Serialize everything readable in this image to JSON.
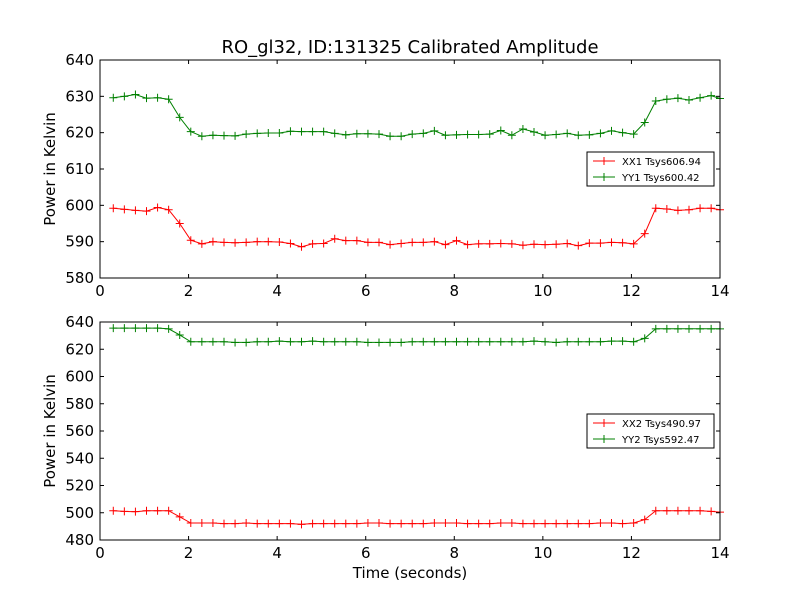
{
  "title": "RO_gl32, ID:131325 Calibrated Amplitude",
  "colors": {
    "xx": "#ff0000",
    "yy": "#008000",
    "axis": "#000000",
    "background": "#ffffff"
  },
  "chart_data": [
    {
      "type": "line",
      "title": "RO_gl32, ID:131325 Calibrated Amplitude",
      "xlabel": "",
      "ylabel": "Power in Kelvin",
      "xlim": [
        0,
        14
      ],
      "ylim": [
        580,
        640
      ],
      "xticks": [
        0,
        2,
        4,
        6,
        8,
        10,
        12,
        14
      ],
      "yticks": [
        580,
        590,
        600,
        610,
        620,
        630,
        640
      ],
      "grid": false,
      "legend_position": "center-right",
      "x": [
        0.3,
        0.55,
        0.8,
        1.05,
        1.3,
        1.55,
        1.8,
        2.05,
        2.3,
        2.55,
        2.8,
        3.05,
        3.3,
        3.55,
        3.8,
        4.05,
        4.3,
        4.55,
        4.8,
        5.05,
        5.3,
        5.55,
        5.8,
        6.05,
        6.3,
        6.55,
        6.8,
        7.05,
        7.3,
        7.55,
        7.8,
        8.05,
        8.3,
        8.55,
        8.8,
        9.05,
        9.3,
        9.55,
        9.8,
        10.05,
        10.3,
        10.55,
        10.8,
        11.05,
        11.3,
        11.55,
        11.8,
        12.05,
        12.3,
        12.55,
        12.8,
        13.05,
        13.3,
        13.55,
        13.8,
        14.0
      ],
      "series": [
        {
          "name": "XX1 Tsys606.94",
          "color": "#ff0000",
          "values": [
            599.2,
            598.9,
            598.6,
            598.4,
            599.4,
            598.8,
            595.0,
            590.4,
            589.4,
            590.0,
            589.8,
            589.7,
            589.8,
            590.0,
            590.0,
            589.9,
            589.5,
            588.6,
            589.4,
            589.5,
            590.8,
            590.3,
            590.3,
            589.8,
            589.8,
            589.2,
            589.5,
            589.8,
            589.8,
            590.0,
            589.2,
            590.3,
            589.2,
            589.4,
            589.4,
            589.5,
            589.4,
            589.0,
            589.3,
            589.2,
            589.3,
            589.5,
            588.9,
            589.6,
            589.6,
            589.8,
            589.7,
            589.4,
            592.2,
            599.2,
            599.0,
            598.6,
            598.8,
            599.2,
            599.2,
            598.8
          ]
        },
        {
          "name": "YY1 Tsys600.42",
          "color": "#008000",
          "values": [
            629.6,
            630.0,
            630.5,
            629.5,
            629.6,
            629.2,
            624.2,
            620.3,
            619.0,
            619.3,
            619.2,
            619.1,
            619.6,
            619.8,
            619.9,
            619.9,
            620.4,
            620.3,
            620.3,
            620.3,
            619.8,
            619.4,
            619.7,
            619.7,
            619.6,
            619.0,
            619.0,
            619.6,
            619.8,
            620.5,
            619.3,
            619.4,
            619.5,
            619.5,
            619.6,
            620.6,
            619.3,
            621.0,
            620.2,
            619.3,
            619.5,
            619.8,
            619.3,
            619.4,
            619.8,
            620.5,
            620.0,
            619.6,
            622.8,
            628.7,
            629.2,
            629.5,
            629.0,
            629.6,
            630.2,
            629.4
          ]
        }
      ]
    },
    {
      "type": "line",
      "title": "",
      "xlabel": "Time (seconds)",
      "ylabel": "Power in Kelvin",
      "xlim": [
        0,
        14
      ],
      "ylim": [
        480,
        640
      ],
      "xticks": [
        0,
        2,
        4,
        6,
        8,
        10,
        12,
        14
      ],
      "yticks": [
        480,
        500,
        520,
        540,
        560,
        580,
        600,
        620,
        640
      ],
      "grid": false,
      "legend_position": "center-right",
      "x": [
        0.3,
        0.55,
        0.8,
        1.05,
        1.3,
        1.55,
        1.8,
        2.05,
        2.3,
        2.55,
        2.8,
        3.05,
        3.3,
        3.55,
        3.8,
        4.05,
        4.3,
        4.55,
        4.8,
        5.05,
        5.3,
        5.55,
        5.8,
        6.05,
        6.3,
        6.55,
        6.8,
        7.05,
        7.3,
        7.55,
        7.8,
        8.05,
        8.3,
        8.55,
        8.8,
        9.05,
        9.3,
        9.55,
        9.8,
        10.05,
        10.3,
        10.55,
        10.8,
        11.05,
        11.3,
        11.55,
        11.8,
        12.05,
        12.3,
        12.55,
        12.8,
        13.05,
        13.3,
        13.55,
        13.8,
        14.0
      ],
      "series": [
        {
          "name": "XX2 Tsys490.97",
          "color": "#ff0000",
          "values": [
            501.5,
            501.0,
            500.8,
            501.5,
            501.5,
            501.5,
            497.0,
            492.5,
            492.5,
            492.5,
            492.0,
            492.0,
            492.5,
            492.0,
            492.0,
            492.0,
            492.0,
            491.5,
            492.0,
            492.0,
            492.0,
            492.0,
            492.0,
            492.5,
            492.5,
            492.0,
            492.0,
            492.0,
            492.0,
            492.5,
            492.5,
            492.5,
            492.0,
            492.0,
            492.0,
            492.5,
            492.5,
            492.0,
            492.0,
            492.0,
            492.0,
            492.0,
            492.0,
            492.0,
            492.5,
            492.5,
            492.0,
            492.5,
            495.0,
            501.5,
            501.5,
            501.5,
            501.5,
            501.5,
            501.0,
            500.5
          ]
        },
        {
          "name": "YY2 Tsys592.47",
          "color": "#008000",
          "values": [
            635.5,
            635.5,
            635.5,
            635.5,
            635.5,
            635.0,
            630.5,
            625.5,
            625.5,
            625.5,
            625.5,
            625.0,
            625.0,
            625.5,
            625.5,
            626.0,
            625.5,
            625.5,
            626.0,
            625.5,
            625.5,
            625.5,
            625.5,
            625.0,
            625.0,
            625.0,
            625.0,
            625.5,
            625.5,
            625.5,
            625.5,
            625.5,
            625.5,
            625.5,
            625.5,
            625.5,
            625.5,
            625.5,
            626.0,
            625.5,
            625.0,
            625.5,
            625.5,
            625.5,
            625.5,
            626.0,
            626.0,
            625.5,
            628.0,
            635.0,
            635.0,
            635.0,
            635.0,
            635.0,
            635.0,
            635.0
          ]
        }
      ]
    }
  ]
}
